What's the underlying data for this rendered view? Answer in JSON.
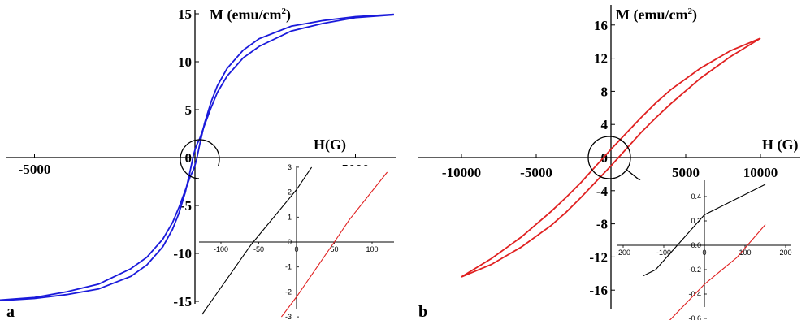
{
  "chart_data": [
    {
      "type": "line",
      "panel_label": "a",
      "title": "",
      "xlabel": "H(G)",
      "ylabel": "M (emu/cm²)",
      "ylabel_main": "M (emu/cm",
      "ylabel_sup": "2",
      "ylabel_close": ")",
      "xlim": [
        -6200,
        6200
      ],
      "ylim": [
        -15,
        15
      ],
      "x_ticks": [
        -5000,
        5000
      ],
      "y_ticks": [
        -15,
        -10,
        -5,
        0,
        5,
        10,
        15
      ],
      "x_tick_labels": [
        "-5000",
        "5000"
      ],
      "y_tick_labels": [
        "-15",
        "-10",
        "-5",
        "0",
        "5",
        "10",
        "15"
      ],
      "series": [
        {
          "color": "#1a1adb",
          "x": [
            -6200,
            -5000,
            -4000,
            -3000,
            -2000,
            -1500,
            -1000,
            -700,
            -500,
            -300,
            -150,
            -50,
            0,
            50,
            150,
            300,
            500,
            700,
            1000,
            1500,
            2000,
            3000,
            4000,
            5000,
            6200
          ],
          "y": [
            -14.9,
            -14.6,
            -14.0,
            -13.2,
            -11.6,
            -10.4,
            -8.5,
            -6.8,
            -5.2,
            -3.4,
            -2.0,
            -1.3,
            -0.8,
            -0.2,
            1.4,
            3.6,
            5.8,
            7.5,
            9.3,
            11.2,
            12.4,
            13.7,
            14.3,
            14.7,
            14.95
          ]
        },
        {
          "color": "#1a1adb",
          "x": [
            -6200,
            -5000,
            -4000,
            -3000,
            -2000,
            -1500,
            -1000,
            -700,
            -500,
            -300,
            -150,
            -50,
            0,
            50,
            150,
            300,
            500,
            700,
            1000,
            1500,
            2000,
            3000,
            4000,
            5000,
            6200
          ],
          "y": [
            -14.95,
            -14.7,
            -14.3,
            -13.7,
            -12.4,
            -11.2,
            -9.3,
            -7.5,
            -5.8,
            -3.6,
            -1.4,
            0.2,
            0.8,
            1.3,
            2.0,
            3.4,
            5.2,
            6.8,
            8.5,
            10.4,
            11.6,
            13.2,
            14.0,
            14.6,
            14.9
          ]
        }
      ],
      "inset": {
        "xlim": [
          -130,
          130
        ],
        "ylim": [
          -3,
          3
        ],
        "x_ticks": [
          -100,
          -50,
          0,
          50,
          100
        ],
        "y_ticks": [
          -3,
          -2,
          -1,
          0,
          1,
          2,
          3
        ],
        "x_tick_labels": [
          "-100",
          "-50",
          "0",
          "50",
          "100"
        ],
        "y_tick_labels": [
          "-3",
          "-2",
          "-1",
          "0",
          "1",
          "2",
          "3"
        ],
        "series": [
          {
            "color": "#000000",
            "x": [
              -125,
              -60,
              0,
              20
            ],
            "y": [
              -2.9,
              -0.1,
              2.1,
              3.0
            ]
          },
          {
            "color": "#e02020",
            "x": [
              -20,
              0,
              50,
              70,
              120
            ],
            "y": [
              -3.0,
              -2.2,
              0.0,
              0.9,
              2.8
            ]
          }
        ]
      }
    },
    {
      "type": "line",
      "panel_label": "b",
      "title": "",
      "xlabel": "H (G)",
      "ylabel": "M (emu/cm²)",
      "ylabel_main": "M (emu/cm",
      "ylabel_sup": "2",
      "ylabel_close": ")",
      "xlim": [
        -12500,
        12000
      ],
      "ylim": [
        -18,
        18
      ],
      "x_ticks": [
        -10000,
        -5000,
        5000,
        10000
      ],
      "y_ticks": [
        -16,
        -12,
        -8,
        -4,
        0,
        4,
        8,
        12,
        16
      ],
      "x_tick_labels": [
        "-10000",
        "-5000",
        "5000",
        "10000"
      ],
      "y_tick_labels": [
        "-16",
        "-12",
        "-8",
        "-4",
        "0",
        "4",
        "8",
        "12",
        "16"
      ],
      "series": [
        {
          "color": "#e02020",
          "x": [
            -10000,
            -8000,
            -6000,
            -4000,
            -3000,
            -2000,
            -1000,
            0,
            1000,
            2000,
            3000,
            4000,
            6000,
            8000,
            10000
          ],
          "y": [
            -14.4,
            -12.9,
            -10.8,
            -8.2,
            -6.6,
            -4.8,
            -2.9,
            -1.0,
            1.0,
            3.0,
            4.8,
            6.5,
            9.6,
            12.2,
            14.4
          ]
        },
        {
          "color": "#e02020",
          "x": [
            -10000,
            -8000,
            -6000,
            -4000,
            -3000,
            -2000,
            -1000,
            0,
            1000,
            2000,
            3000,
            4000,
            6000,
            8000,
            10000
          ],
          "y": [
            -14.4,
            -12.2,
            -9.6,
            -6.5,
            -4.8,
            -3.0,
            -1.0,
            1.0,
            2.9,
            4.8,
            6.6,
            8.2,
            10.8,
            12.9,
            14.4
          ]
        }
      ],
      "inset": {
        "xlim": [
          -220,
          220
        ],
        "ylim": [
          -0.7,
          0.5
        ],
        "x_ticks": [
          -200,
          -100,
          0,
          100,
          200
        ],
        "y_ticks": [
          -0.6,
          -0.4,
          -0.2,
          0.0,
          0.2,
          0.4
        ],
        "x_tick_labels": [
          "-200",
          "-100",
          "0",
          "100",
          "200"
        ],
        "y_tick_labels": [
          "-0.6",
          "-0.4",
          "-0.2",
          "0.0",
          "0.2",
          "0.4"
        ],
        "series": [
          {
            "color": "#000000",
            "x": [
              -150,
              -120,
              0,
              150
            ],
            "y": [
              -0.25,
              -0.2,
              0.25,
              0.5
            ]
          },
          {
            "color": "#e02020",
            "x": [
              -110,
              0,
              80,
              150
            ],
            "y": [
              -0.7,
              -0.32,
              -0.1,
              0.17
            ]
          }
        ]
      }
    }
  ]
}
